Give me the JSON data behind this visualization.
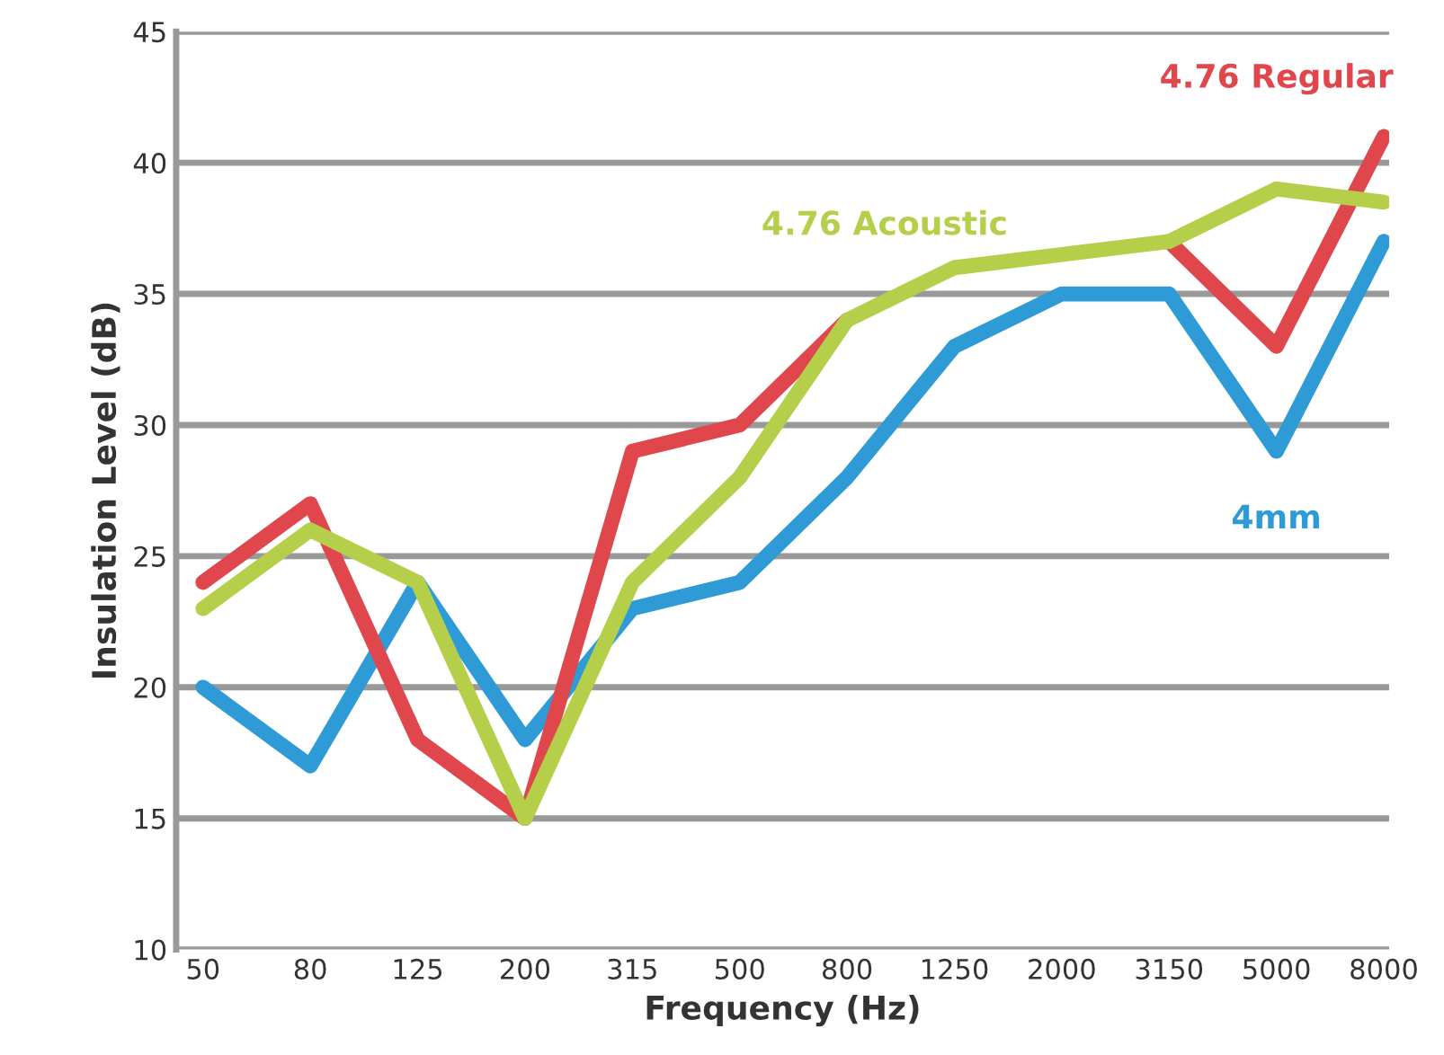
{
  "chart_data": {
    "type": "line",
    "xlabel": "Frequency (Hz)",
    "ylabel": "Insulation Level (dB)",
    "categories": [
      "50",
      "80",
      "125",
      "200",
      "315",
      "500",
      "800",
      "1250",
      "2000",
      "3150",
      "5000",
      "8000"
    ],
    "series": [
      {
        "name": "4mm",
        "color": "#2e9bd6",
        "values": [
          20,
          17,
          24,
          18,
          23,
          24,
          28,
          33,
          35,
          35,
          29,
          37
        ]
      },
      {
        "name": "4.76 Regular",
        "color": "#e0474c",
        "values": [
          24,
          27,
          18,
          15,
          29,
          30,
          34,
          null,
          null,
          37,
          33,
          41
        ]
      },
      {
        "name": "4.76 Acoustic",
        "color": "#b5cf4a",
        "values": [
          23,
          26,
          24,
          15,
          24,
          28,
          34,
          36,
          36.5,
          37,
          39,
          38.5
        ]
      }
    ],
    "ylim": [
      10,
      45
    ],
    "yticks": [
      10,
      15,
      20,
      25,
      30,
      35,
      40,
      45
    ],
    "grid": "y",
    "legend": false,
    "marker": "none",
    "line_style": "solid"
  }
}
